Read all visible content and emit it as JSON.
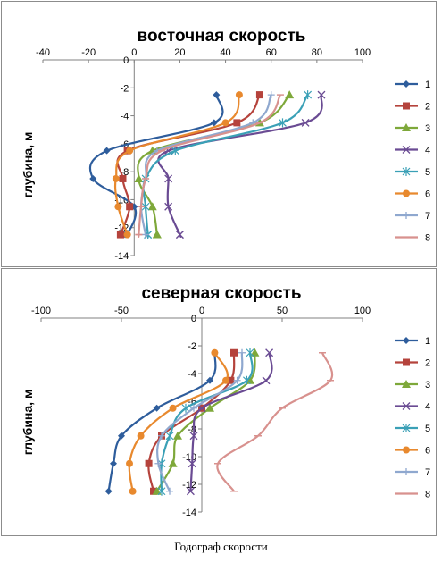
{
  "caption": "Годограф скорости",
  "series_colors": [
    "#2e5d9c",
    "#b5433c",
    "#7ea83a",
    "#6a4b93",
    "#3aa0b6",
    "#e8892e",
    "#8fa8cf",
    "#d8918e"
  ],
  "chart_data": [
    {
      "type": "line",
      "title": "восточная скорость",
      "xlabel": "",
      "ylabel": "глубина, м",
      "xlim": [
        -40,
        100
      ],
      "ylim": [
        -14,
        0
      ],
      "xticks": [
        -40,
        -20,
        0,
        20,
        40,
        60,
        80,
        100
      ],
      "yticks": [
        0,
        -2,
        -4,
        -6,
        -8,
        -10,
        -12,
        -14
      ],
      "legend_position": "right",
      "series": [
        {
          "name": "1",
          "marker": "diamond",
          "x": [
            36,
            35,
            -12,
            -18,
            0,
            -3,
            -4
          ],
          "y": [
            -2.5,
            -4.5,
            -6.5,
            -8.5,
            -10.5,
            -12.5,
            -12.5
          ]
        },
        {
          "name": "2",
          "marker": "square",
          "x": [
            55,
            45,
            -3,
            -5,
            -2,
            -6,
            -6
          ],
          "y": [
            -2.5,
            -4.5,
            -6.5,
            -8.5,
            -10.5,
            -12.5,
            -12.5
          ]
        },
        {
          "name": "3",
          "marker": "triangle",
          "x": [
            68,
            55,
            8,
            2,
            8,
            10,
            10
          ],
          "y": [
            -2.5,
            -4.5,
            -6.5,
            -8.5,
            -10.5,
            -12.5,
            -12.5
          ]
        },
        {
          "name": "4",
          "marker": "x",
          "x": [
            82,
            75,
            15,
            15,
            15,
            20,
            20
          ],
          "y": [
            -2.5,
            -4.5,
            -6.5,
            -8.5,
            -10.5,
            -12.5,
            -12.5
          ]
        },
        {
          "name": "5",
          "marker": "asterisk",
          "x": [
            76,
            65,
            18,
            5,
            5,
            6,
            6
          ],
          "y": [
            -2.5,
            -4.5,
            -6.5,
            -8.5,
            -10.5,
            -12.5,
            -12.5
          ]
        },
        {
          "name": "6",
          "marker": "circle",
          "x": [
            46,
            40,
            -2,
            -8,
            -7,
            -3,
            -3
          ],
          "y": [
            -2.5,
            -4.5,
            -6.5,
            -8.5,
            -10.5,
            -12.5,
            -12.5
          ]
        },
        {
          "name": "7",
          "marker": "plus",
          "x": [
            60,
            52,
            10,
            5,
            3,
            5,
            5
          ],
          "y": [
            -2.5,
            -4.5,
            -6.5,
            -8.5,
            -10.5,
            -12.5,
            -12.5
          ]
        },
        {
          "name": "8",
          "marker": "dash",
          "x": [
            64,
            55,
            12,
            5,
            3,
            2,
            2
          ],
          "y": [
            -2.5,
            -4.5,
            -6.5,
            -8.5,
            -10.5,
            -12.5,
            -12.5
          ]
        }
      ]
    },
    {
      "type": "line",
      "title": "северная скорость",
      "xlabel": "",
      "ylabel": "глубина, м",
      "xlim": [
        -100,
        100
      ],
      "ylim": [
        -14,
        0
      ],
      "xticks": [
        -100,
        -50,
        0,
        50,
        100
      ],
      "yticks": [
        0,
        -2,
        -4,
        -6,
        -8,
        -10,
        -12,
        -14
      ],
      "legend_position": "right",
      "series": [
        {
          "name": "1",
          "marker": "diamond",
          "x": [
            8,
            5,
            -28,
            -50,
            -55,
            -58
          ],
          "y": [
            -2.5,
            -4.5,
            -6.5,
            -8.5,
            -10.5,
            -12.5
          ]
        },
        {
          "name": "2",
          "marker": "square",
          "x": [
            20,
            18,
            0,
            -25,
            -33,
            -30
          ],
          "y": [
            -2.5,
            -4.5,
            -6.5,
            -8.5,
            -10.5,
            -12.5
          ]
        },
        {
          "name": "3",
          "marker": "triangle",
          "x": [
            33,
            30,
            5,
            -15,
            -18,
            -28
          ],
          "y": [
            -2.5,
            -4.5,
            -6.5,
            -8.5,
            -10.5,
            -12.5
          ]
        },
        {
          "name": "4",
          "marker": "x",
          "x": [
            42,
            40,
            0,
            -5,
            -6,
            -7
          ],
          "y": [
            -2.5,
            -4.5,
            -6.5,
            -8.5,
            -10.5,
            -12.5
          ]
        },
        {
          "name": "5",
          "marker": "asterisk",
          "x": [
            30,
            28,
            -10,
            -20,
            -25,
            -25
          ],
          "y": [
            -2.5,
            -4.5,
            -6.5,
            -8.5,
            -10.5,
            -12.5
          ]
        },
        {
          "name": "6",
          "marker": "circle",
          "x": [
            8,
            15,
            -18,
            -38,
            -45,
            -43
          ],
          "y": [
            -2.5,
            -4.5,
            -6.5,
            -8.5,
            -10.5,
            -12.5
          ]
        },
        {
          "name": "7",
          "marker": "plus",
          "x": [
            25,
            22,
            -5,
            -25,
            -27,
            -20
          ],
          "y": [
            -2.5,
            -4.5,
            -6.5,
            -8.5,
            -10.5,
            -12.5
          ]
        },
        {
          "name": "8",
          "marker": "dash",
          "x": [
            75,
            80,
            50,
            35,
            10,
            20
          ],
          "y": [
            -2.5,
            -4.5,
            -6.5,
            -8.5,
            -10.5,
            -12.5
          ]
        }
      ]
    }
  ]
}
